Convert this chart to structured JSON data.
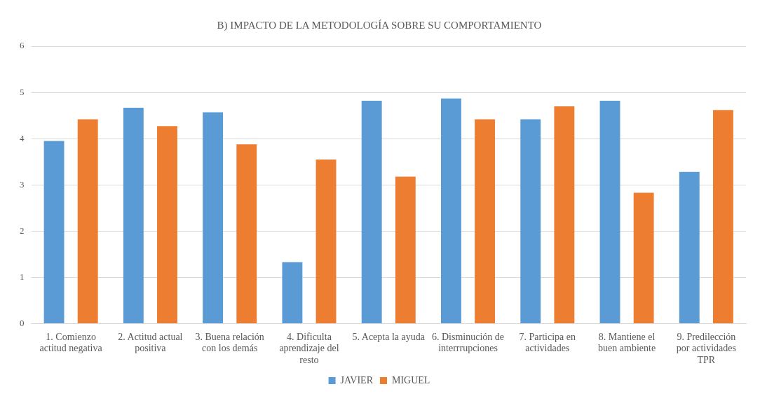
{
  "chart_data": {
    "type": "bar",
    "title": "B) IMPACTO DE LA METODOLOGÍA SOBRE SU COMPORTAMIENTO",
    "categories": [
      "1. Comienzo actitud negativa",
      "2. Actitud actual positiva",
      "3. Buena relación con los demás",
      "4. Dificulta aprendizaje del resto",
      "5. Acepta la ayuda",
      "6. Disminución de interrrupciones",
      "7. Participa en actividades",
      "8. Mantiene el buen ambiente",
      "9. Predilección por actividades TPR"
    ],
    "series": [
      {
        "name": "JAVIER",
        "color": "#5b9bd5",
        "values": [
          3.95,
          4.67,
          4.57,
          1.33,
          4.82,
          4.87,
          4.42,
          4.82,
          3.28
        ]
      },
      {
        "name": "MIGUEL",
        "color": "#ed7d31",
        "values": [
          4.42,
          4.27,
          3.88,
          3.55,
          3.18,
          4.42,
          4.7,
          2.83,
          4.62
        ]
      }
    ],
    "ylim": [
      0,
      6
    ],
    "yticks": [
      0,
      1,
      2,
      3,
      4,
      5,
      6
    ],
    "grid": "y",
    "legend": "bottom"
  }
}
